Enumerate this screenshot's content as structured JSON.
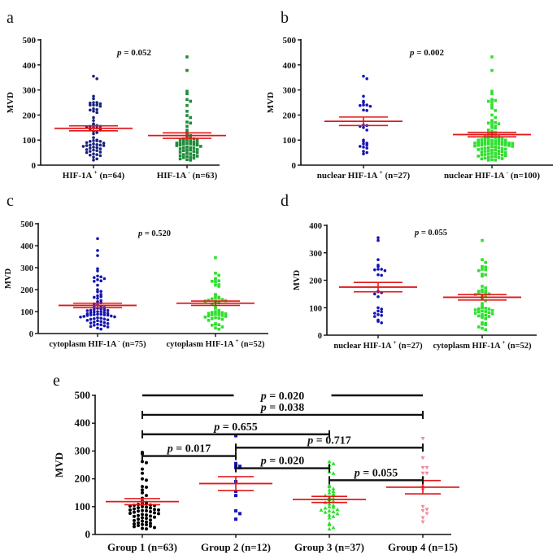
{
  "colors": {
    "mean_sem": "#e01818",
    "axis": "#111111",
    "blue": "#1414b4",
    "navy": "#1a237e",
    "green_dark": "#1e8c3a",
    "green": "#2ee02e",
    "black": "#000000",
    "pink": "#f08c9c"
  },
  "chart_data": [
    {
      "panel": "a",
      "type": "scatter",
      "ylabel": "MVD",
      "ylim": [
        0,
        500
      ],
      "yticks": [
        0,
        100,
        200,
        300,
        400,
        500
      ],
      "pvalue": "p = 0.052",
      "groups": [
        {
          "label": "HIF-1A",
          "sup": "+",
          "tail": " (n=64)",
          "color": "#1a237e",
          "marker": "circle",
          "mean": 147,
          "sem": 10,
          "values": [
            355,
            345,
            275,
            265,
            250,
            250,
            248,
            245,
            240,
            240,
            240,
            235,
            225,
            222,
            220,
            215,
            210,
            190,
            178,
            165,
            160,
            158,
            155,
            155,
            152,
            150,
            148,
            145,
            140,
            135,
            130,
            125,
            110,
            100,
            98,
            97,
            95,
            95,
            90,
            88,
            85,
            82,
            80,
            80,
            78,
            78,
            75,
            72,
            70,
            68,
            65,
            62,
            60,
            58,
            55,
            52,
            50,
            45,
            42,
            40,
            38,
            32,
            25,
            20
          ]
        },
        {
          "label": "HIF-1A",
          "sup": "-",
          "tail": " (n=63)",
          "color": "#1e8c3a",
          "marker": "square",
          "mean": 118,
          "sem": 11,
          "values": [
            432,
            378,
            295,
            285,
            262,
            255,
            238,
            215,
            198,
            190,
            172,
            168,
            155,
            140,
            130,
            125,
            118,
            112,
            108,
            105,
            105,
            102,
            100,
            98,
            96,
            92,
            90,
            88,
            88,
            86,
            85,
            84,
            82,
            80,
            80,
            78,
            75,
            72,
            70,
            68,
            65,
            62,
            60,
            58,
            55,
            52,
            50,
            48,
            45,
            42,
            40,
            38,
            36,
            35,
            32,
            30,
            28,
            25,
            22,
            20,
            60,
            70,
            95
          ]
        }
      ]
    },
    {
      "panel": "b",
      "type": "scatter",
      "ylabel": "MVD",
      "ylim": [
        0,
        500
      ],
      "yticks": [
        0,
        100,
        200,
        300,
        400,
        500
      ],
      "pvalue": "p = 0.002",
      "groups": [
        {
          "label": "nuclear HIF-1A",
          "sup": "+",
          "tail": " (n=27)",
          "color": "#1414b4",
          "marker": "circle",
          "mean": 175,
          "sem": 17,
          "values": [
            355,
            345,
            275,
            255,
            250,
            240,
            240,
            238,
            235,
            220,
            218,
            160,
            158,
            155,
            150,
            140,
            100,
            95,
            88,
            85,
            80,
            75,
            72,
            68,
            55,
            50,
            45
          ]
        },
        {
          "label": "nuclear HIF-1A",
          "sup": "-",
          "tail": " (n=100)",
          "color": "#2ee02e",
          "marker": "square",
          "mean": 122,
          "sem": 9,
          "values": [
            432,
            378,
            295,
            285,
            262,
            258,
            255,
            250,
            238,
            228,
            218,
            200,
            190,
            178,
            172,
            170,
            168,
            165,
            160,
            155,
            150,
            148,
            140,
            135,
            130,
            128,
            125,
            122,
            120,
            118,
            115,
            112,
            110,
            108,
            106,
            105,
            104,
            102,
            100,
            100,
            98,
            97,
            96,
            95,
            94,
            92,
            90,
            90,
            88,
            88,
            87,
            86,
            85,
            85,
            84,
            83,
            82,
            80,
            80,
            79,
            78,
            76,
            75,
            74,
            72,
            70,
            70,
            68,
            66,
            65,
            64,
            62,
            60,
            58,
            56,
            55,
            54,
            52,
            50,
            48,
            46,
            45,
            44,
            42,
            40,
            40,
            38,
            36,
            35,
            34,
            32,
            30,
            28,
            26,
            25,
            22,
            20,
            20,
            60,
            90
          ]
        }
      ]
    },
    {
      "panel": "c",
      "type": "scatter",
      "ylabel": "MVD",
      "ylim": [
        0,
        500
      ],
      "yticks": [
        0,
        100,
        200,
        300,
        400,
        500
      ],
      "pvalue": "p = 0.520",
      "groups": [
        {
          "label": "cytoplasm HIF-1A",
          "sup": "-",
          "tail": " (n=75)",
          "color": "#1414b4",
          "marker": "circle",
          "mean": 128,
          "sem": 10,
          "values": [
            432,
            378,
            355,
            295,
            285,
            262,
            258,
            255,
            250,
            245,
            240,
            238,
            220,
            200,
            192,
            190,
            178,
            172,
            168,
            165,
            160,
            150,
            145,
            140,
            135,
            130,
            125,
            120,
            118,
            112,
            108,
            106,
            105,
            104,
            100,
            98,
            96,
            95,
            92,
            90,
            88,
            88,
            86,
            85,
            84,
            82,
            80,
            78,
            76,
            75,
            72,
            70,
            68,
            66,
            65,
            62,
            60,
            58,
            55,
            52,
            50,
            48,
            45,
            42,
            40,
            38,
            35,
            32,
            30,
            25,
            20,
            110,
            115,
            100,
            85
          ]
        },
        {
          "label": "cytoplasm HIF-1A",
          "sup": "+",
          "tail": " (n=52)",
          "color": "#2ee02e",
          "marker": "square",
          "mean": 138,
          "sem": 10,
          "values": [
            345,
            275,
            265,
            250,
            248,
            240,
            238,
            235,
            222,
            220,
            215,
            178,
            172,
            165,
            160,
            160,
            158,
            155,
            152,
            150,
            148,
            145,
            140,
            135,
            125,
            115,
            105,
            100,
            98,
            96,
            95,
            92,
            90,
            88,
            86,
            85,
            82,
            80,
            78,
            75,
            72,
            70,
            68,
            65,
            60,
            45,
            42,
            40,
            38,
            30,
            25,
            20
          ]
        }
      ]
    },
    {
      "panel": "d",
      "type": "scatter",
      "ylabel": "MVD",
      "ylim": [
        0,
        400
      ],
      "yticks": [
        0,
        100,
        200,
        300,
        400
      ],
      "pvalue": "p = 0.055",
      "groups": [
        {
          "label": "nuclear HIF-1A",
          "sup": "+",
          "tail": " (n=27)",
          "color": "#1414b4",
          "marker": "circle",
          "mean": 175,
          "sem": 17,
          "values": [
            355,
            345,
            275,
            255,
            250,
            240,
            240,
            238,
            235,
            220,
            218,
            160,
            158,
            155,
            150,
            140,
            100,
            95,
            88,
            85,
            80,
            75,
            72,
            68,
            55,
            50,
            45
          ]
        },
        {
          "label": "cytoplasm HIF-1A",
          "sup": "+",
          "tail": " (n=52)",
          "color": "#2ee02e",
          "marker": "square",
          "mean": 138,
          "sem": 10,
          "values": [
            345,
            275,
            265,
            250,
            248,
            240,
            238,
            235,
            222,
            220,
            215,
            178,
            172,
            165,
            160,
            160,
            158,
            155,
            152,
            150,
            148,
            145,
            140,
            135,
            125,
            115,
            105,
            100,
            98,
            96,
            95,
            92,
            90,
            88,
            86,
            85,
            82,
            80,
            78,
            75,
            72,
            70,
            68,
            65,
            60,
            45,
            42,
            40,
            38,
            30,
            25,
            20
          ]
        }
      ]
    },
    {
      "panel": "e",
      "type": "scatter",
      "ylabel": "MVD",
      "ylim": [
        0,
        500
      ],
      "yticks": [
        0,
        100,
        200,
        300,
        400,
        500
      ],
      "groups": [
        {
          "label": "Group 1",
          "sup": "",
          "tail": " (n=63)",
          "color": "#000000",
          "marker": "circle",
          "mean": 118,
          "sem": 11,
          "values": [
            295,
            290,
            262,
            258,
            235,
            220,
            200,
            195,
            172,
            170,
            160,
            150,
            140,
            130,
            120,
            115,
            112,
            108,
            106,
            105,
            104,
            102,
            100,
            98,
            96,
            95,
            92,
            90,
            88,
            88,
            86,
            85,
            84,
            82,
            80,
            78,
            76,
            75,
            72,
            70,
            68,
            66,
            65,
            62,
            60,
            58,
            55,
            52,
            50,
            48,
            45,
            42,
            40,
            38,
            36,
            35,
            32,
            30,
            28,
            25,
            22,
            20,
            110
          ]
        },
        {
          "label": "Group 2",
          "sup": "",
          "tail": " (n=12)",
          "color": "#1414b4",
          "marker": "square",
          "mean": 183,
          "sem": 25,
          "values": [
            355,
            255,
            250,
            245,
            240,
            240,
            190,
            155,
            140,
            85,
            75,
            55
          ]
        },
        {
          "label": "Group 3",
          "sup": "",
          "tail": " (n=37)",
          "color": "#2ee02e",
          "marker": "triangle",
          "mean": 126,
          "sem": 11,
          "values": [
            262,
            255,
            250,
            240,
            225,
            220,
            178,
            172,
            165,
            160,
            155,
            150,
            145,
            140,
            135,
            130,
            125,
            120,
            115,
            110,
            105,
            100,
            98,
            95,
            90,
            88,
            85,
            82,
            80,
            75,
            70,
            65,
            60,
            40,
            35,
            25,
            20
          ]
        },
        {
          "label": "Group 4",
          "sup": "",
          "tail": " (n=15)",
          "color": "#f08c9c",
          "marker": "triangle-down",
          "mean": 170,
          "sem": 24,
          "values": [
            345,
            275,
            240,
            240,
            220,
            220,
            200,
            170,
            160,
            100,
            90,
            85,
            75,
            60,
            45
          ]
        }
      ],
      "comparisons": [
        {
          "from": 1,
          "to": 4,
          "y": 500,
          "label": "p = 0.020",
          "style": "plain"
        },
        {
          "from": 1,
          "to": 4,
          "y": 430,
          "label": "p = 0.038"
        },
        {
          "from": 1,
          "to": 3,
          "y": 360,
          "label": "p = 0.655"
        },
        {
          "from": 2,
          "to": 4,
          "y": 312,
          "label": "p = 0.717"
        },
        {
          "from": 1,
          "to": 2,
          "y": 282,
          "label": "p = 0.017"
        },
        {
          "from": 2,
          "to": 3,
          "y": 238,
          "label": "p = 0.020"
        },
        {
          "from": 3,
          "to": 4,
          "y": 195,
          "label": "p = 0.055"
        }
      ]
    }
  ]
}
